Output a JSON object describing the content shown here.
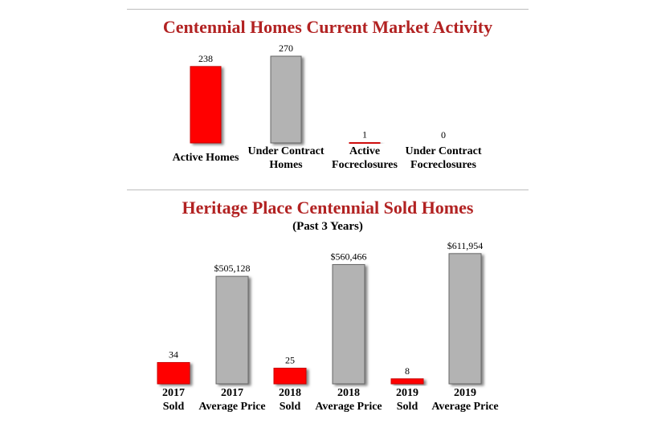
{
  "chart_data": [
    {
      "type": "bar",
      "title": "Centennial Homes Current Market Activity",
      "categories": [
        [
          "Active Homes"
        ],
        [
          "Under Contract",
          "Homes"
        ],
        [
          "Active",
          "Focreclosures"
        ],
        [
          "Under Contract",
          "Focreclosures"
        ]
      ],
      "values": [
        238,
        270,
        1,
        0
      ],
      "value_labels": [
        "238",
        "270",
        "1",
        "0"
      ],
      "bar_colors": [
        "#ff0000",
        "#b3b3b3",
        "#ff0000",
        "#b3b3b3"
      ],
      "ylim": [
        0,
        270
      ]
    },
    {
      "type": "bar",
      "title": "Heritage Place Centennial Sold Homes",
      "subtitle": "(Past 3 Years)",
      "categories": [
        [
          "2017",
          "Sold"
        ],
        [
          "2017",
          "Average Price"
        ],
        [
          "2018",
          "Sold"
        ],
        [
          "2018",
          "Average Price"
        ],
        [
          "2019",
          "Sold"
        ],
        [
          "2019",
          "Average Price"
        ]
      ],
      "values": [
        34,
        505128,
        25,
        560466,
        8,
        611954
      ],
      "value_labels": [
        "34",
        "$505,128",
        "25",
        "$560,466",
        "8",
        "$611,954"
      ],
      "bar_colors": [
        "#ff0000",
        "#b3b3b3",
        "#ff0000",
        "#b3b3b3",
        "#ff0000",
        "#b3b3b3"
      ]
    }
  ]
}
